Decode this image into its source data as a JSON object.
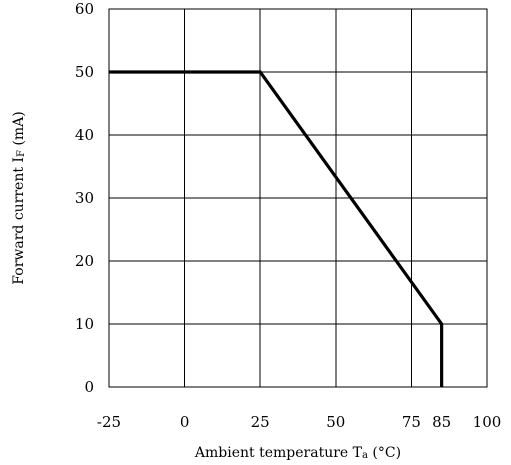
{
  "chart_data": {
    "type": "line",
    "xlabel": "Ambient temperature Tₐ (°C)",
    "ylabel": "Forward current Iғ (mA)",
    "xlabel_parts": {
      "main": "Ambient temperature T",
      "sub": "a",
      "tail": " (°C)"
    },
    "ylabel_parts": {
      "main": "Forward current I",
      "sub": "F",
      "tail": " (mA)"
    },
    "xlim": [
      -25,
      100
    ],
    "ylim": [
      0,
      60
    ],
    "grid": true,
    "x_ticks": [
      {
        "value": -25,
        "label": "-25"
      },
      {
        "value": 0,
        "label": "0"
      },
      {
        "value": 25,
        "label": "25"
      },
      {
        "value": 50,
        "label": "50"
      },
      {
        "value": 75,
        "label": "75"
      },
      {
        "value": 85,
        "label": "85"
      },
      {
        "value": 100,
        "label": "100"
      }
    ],
    "x_gridlines": [
      0,
      25,
      50,
      75
    ],
    "y_ticks": [
      0,
      10,
      20,
      30,
      40,
      50,
      60
    ],
    "series": [
      {
        "points": [
          {
            "x": -25,
            "y": 50
          },
          {
            "x": 25,
            "y": 50
          },
          {
            "x": 85,
            "y": 10
          },
          {
            "x": 85,
            "y": 0
          }
        ]
      }
    ]
  }
}
